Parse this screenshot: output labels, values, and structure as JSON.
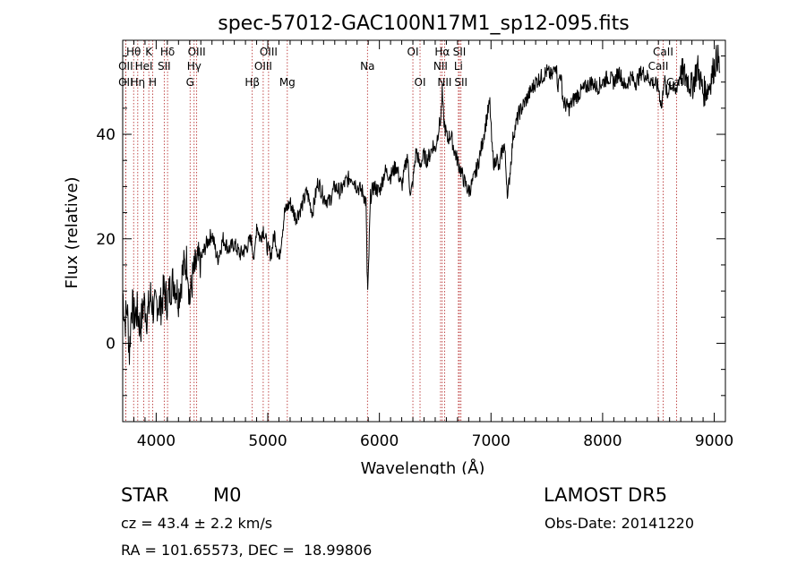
{
  "chart_data": {
    "type": "line",
    "title": "spec-57012-GAC100N17M1_sp12-095.fits",
    "xlabel": "Wavelength (Å)",
    "ylabel": "Flux (relative)",
    "xlim": [
      3700,
      9100
    ],
    "ylim": [
      -15,
      58
    ],
    "x_ticks": [
      4000,
      5000,
      6000,
      7000,
      8000,
      9000
    ],
    "y_ticks": [
      0,
      20,
      40
    ],
    "grid": false,
    "series": [
      {
        "x": [
          3700,
          3720,
          3740,
          3760,
          3780,
          3800,
          3830,
          3860,
          3890,
          3920,
          3950,
          3980,
          4010,
          4040,
          4070,
          4100,
          4130,
          4160,
          4200,
          4240,
          4280,
          4300,
          4330,
          4360,
          4400,
          4450,
          4500,
          4550,
          4600,
          4650,
          4700,
          4750,
          4800,
          4850,
          4880,
          4900,
          4930,
          4960,
          5000,
          5030,
          5060,
          5100,
          5150,
          5200,
          5250,
          5300,
          5350,
          5400,
          5450,
          5500,
          5550,
          5600,
          5650,
          5700,
          5750,
          5800,
          5850,
          5880,
          5890,
          5895,
          5900,
          5910,
          5920,
          5950,
          6000,
          6050,
          6100,
          6150,
          6200,
          6250,
          6280,
          6300,
          6330,
          6360,
          6400,
          6420,
          6450,
          6480,
          6500,
          6530,
          6550,
          6563,
          6575,
          6590,
          6610,
          6640,
          6670,
          6700,
          6730,
          6760,
          6800,
          6840,
          6880,
          6920,
          6960,
          6990,
          7010,
          7030,
          7050,
          7070,
          7100,
          7120,
          7150,
          7200,
          7250,
          7300,
          7350,
          7400,
          7450,
          7500,
          7550,
          7580,
          7600,
          7620,
          7650,
          7700,
          7750,
          7800,
          7850,
          7900,
          7950,
          8000,
          8050,
          8100,
          8150,
          8200,
          8250,
          8300,
          8350,
          8400,
          8450,
          8500,
          8530,
          8550,
          8580,
          8600,
          8650,
          8700,
          8750,
          8800,
          8850,
          8880,
          8900,
          8950,
          9000,
          9030,
          9050
        ],
        "y": [
          10,
          4,
          7,
          -2,
          8,
          5,
          6,
          3,
          8,
          5,
          9,
          6,
          8,
          7,
          10,
          8,
          11,
          12,
          9,
          14,
          16,
          8,
          13,
          15,
          16,
          19,
          21,
          16,
          20,
          18,
          19,
          17,
          18,
          20,
          16,
          23,
          20,
          22,
          18,
          17,
          21,
          16,
          25,
          27,
          24,
          26,
          29,
          25,
          31,
          28,
          27,
          30,
          29,
          31,
          32,
          30,
          29,
          27,
          14,
          10,
          12,
          20,
          28,
          30,
          29,
          33,
          32,
          34,
          30,
          36,
          28,
          31,
          37,
          34,
          36,
          35,
          36,
          38,
          37,
          41,
          43,
          48,
          43,
          41,
          39,
          40,
          37,
          35,
          33,
          31,
          29,
          31,
          34,
          38,
          43,
          46,
          37,
          34,
          36,
          33,
          37,
          38,
          28,
          40,
          44,
          46,
          48,
          50,
          51,
          52,
          51,
          54,
          49,
          52,
          46,
          45,
          47,
          48,
          49,
          50,
          49,
          50,
          51,
          50,
          52,
          49,
          51,
          50,
          52,
          51,
          50,
          49,
          45,
          51,
          47,
          50,
          48,
          52,
          51,
          49,
          53,
          50,
          48,
          49,
          53,
          55,
          52
        ]
      }
    ],
    "spectral_lines": [
      {
        "label": "Hθ",
        "x": 3798,
        "row": 1
      },
      {
        "label": "OII",
        "x": 3727,
        "row": 2
      },
      {
        "label": "OII",
        "x": 3727,
        "row": 3
      },
      {
        "label": "Hη",
        "x": 3835,
        "row": 3
      },
      {
        "label": "HeI",
        "x": 3889,
        "row": 2
      },
      {
        "label": "K",
        "x": 3934,
        "row": 1
      },
      {
        "label": "H",
        "x": 3969,
        "row": 3
      },
      {
        "label": "Hδ",
        "x": 4102,
        "row": 1
      },
      {
        "label": "SII",
        "x": 4072,
        "row": 2
      },
      {
        "label": "OIII",
        "x": 4363,
        "row": 1
      },
      {
        "label": "Hγ",
        "x": 4340,
        "row": 2
      },
      {
        "label": "G",
        "x": 4304,
        "row": 3
      },
      {
        "label": "OIII",
        "x": 5007,
        "row": 1
      },
      {
        "label": "OIII",
        "x": 4959,
        "row": 2
      },
      {
        "label": "Hβ",
        "x": 4861,
        "row": 3
      },
      {
        "label": "Mg",
        "x": 5175,
        "row": 3
      },
      {
        "label": "Na",
        "x": 5893,
        "row": 2
      },
      {
        "label": "OI",
        "x": 6300,
        "row": 1
      },
      {
        "label": "OI",
        "x": 6364,
        "row": 3
      },
      {
        "label": "Hα",
        "x": 6563,
        "row": 1
      },
      {
        "label": "NII",
        "x": 6548,
        "row": 2
      },
      {
        "label": "NII",
        "x": 6584,
        "row": 3
      },
      {
        "label": "SII",
        "x": 6717,
        "row": 1
      },
      {
        "label": "Li",
        "x": 6708,
        "row": 2
      },
      {
        "label": "SII",
        "x": 6731,
        "row": 3
      },
      {
        "label": "CaII",
        "x": 8542,
        "row": 1
      },
      {
        "label": "CaII",
        "x": 8498,
        "row": 2
      },
      {
        "label": "CaII",
        "x": 8662,
        "row": 3
      }
    ]
  },
  "info": {
    "object_class": "STAR",
    "subclass": "M0",
    "survey": "LAMOST DR5",
    "cz": "cz = 43.4 ± 2.2 km/s",
    "obs_date": "Obs-Date: 20141220",
    "coords": "RA = 101.65573, DEC =  18.99806"
  },
  "colors": {
    "line": "#000000",
    "marker": "#b22222",
    "background": "#ffffff"
  }
}
